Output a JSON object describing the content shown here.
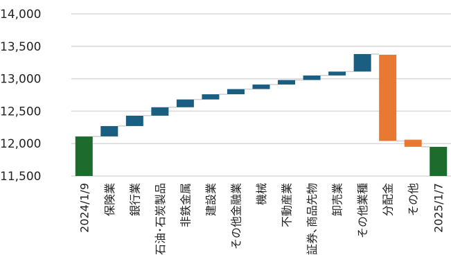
{
  "chart_data": {
    "type": "waterfall",
    "title": "",
    "xlabel": "",
    "ylabel": "",
    "ylim": [
      11500,
      14000
    ],
    "yticks": [
      11500,
      12000,
      12500,
      13000,
      13500,
      14000
    ],
    "ytick_labels": [
      "11,500",
      "12,000",
      "12,500",
      "13,000",
      "13,500",
      "14,000"
    ],
    "grid": true,
    "legend": "none",
    "colors": {
      "total": "#1e6b2e",
      "increase": "#1a5e82",
      "decrease": "#e97832",
      "grid": "#d9d9d9",
      "connector": "#cfcfcf"
    },
    "bars": [
      {
        "label": "2024/1/9",
        "kind": "total",
        "start": 11500,
        "end": 12110
      },
      {
        "label": "保険業",
        "kind": "increase",
        "start": 12110,
        "end": 12270
      },
      {
        "label": "銀行業",
        "kind": "increase",
        "start": 12270,
        "end": 12430
      },
      {
        "label": "石油･石炭製品",
        "kind": "increase",
        "start": 12430,
        "end": 12560
      },
      {
        "label": "非鉄金属",
        "kind": "increase",
        "start": 12560,
        "end": 12680
      },
      {
        "label": "建設業",
        "kind": "increase",
        "start": 12680,
        "end": 12760
      },
      {
        "label": "その他金融業",
        "kind": "increase",
        "start": 12760,
        "end": 12840
      },
      {
        "label": "機械",
        "kind": "increase",
        "start": 12840,
        "end": 12910
      },
      {
        "label": "不動産業",
        "kind": "increase",
        "start": 12910,
        "end": 12980
      },
      {
        "label": "証券､商品先物",
        "kind": "increase",
        "start": 12980,
        "end": 13050
      },
      {
        "label": "卸売業",
        "kind": "increase",
        "start": 13050,
        "end": 13110
      },
      {
        "label": "その他業種",
        "kind": "increase",
        "start": 13110,
        "end": 13380
      },
      {
        "label": "分配金",
        "kind": "decrease",
        "start": 13370,
        "end": 12040
      },
      {
        "label": "その他",
        "kind": "decrease",
        "start": 12060,
        "end": 11950
      },
      {
        "label": "2025/1/7",
        "kind": "total",
        "start": 11500,
        "end": 11950
      }
    ]
  }
}
